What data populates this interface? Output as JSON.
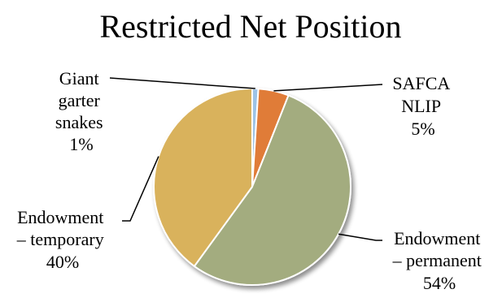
{
  "chart_data": {
    "type": "pie",
    "title": "Restricted Net Position",
    "slices": [
      {
        "label_lines": [
          "Giant",
          "garter",
          "snakes"
        ],
        "percent_label": "1%",
        "value": 1,
        "color": "#9DC3E6"
      },
      {
        "label_lines": [
          "SAFCA",
          "NLIP"
        ],
        "percent_label": "5%",
        "value": 5,
        "color": "#E07B39"
      },
      {
        "label_lines": [
          "Endowment",
          "– permanent"
        ],
        "percent_label": "54%",
        "value": 54,
        "color": "#A3AC7F"
      },
      {
        "label_lines": [
          "Endowment",
          "– temporary"
        ],
        "percent_label": "40%",
        "value": 40,
        "color": "#D9B25C"
      }
    ],
    "legend": "none",
    "grid": false
  }
}
